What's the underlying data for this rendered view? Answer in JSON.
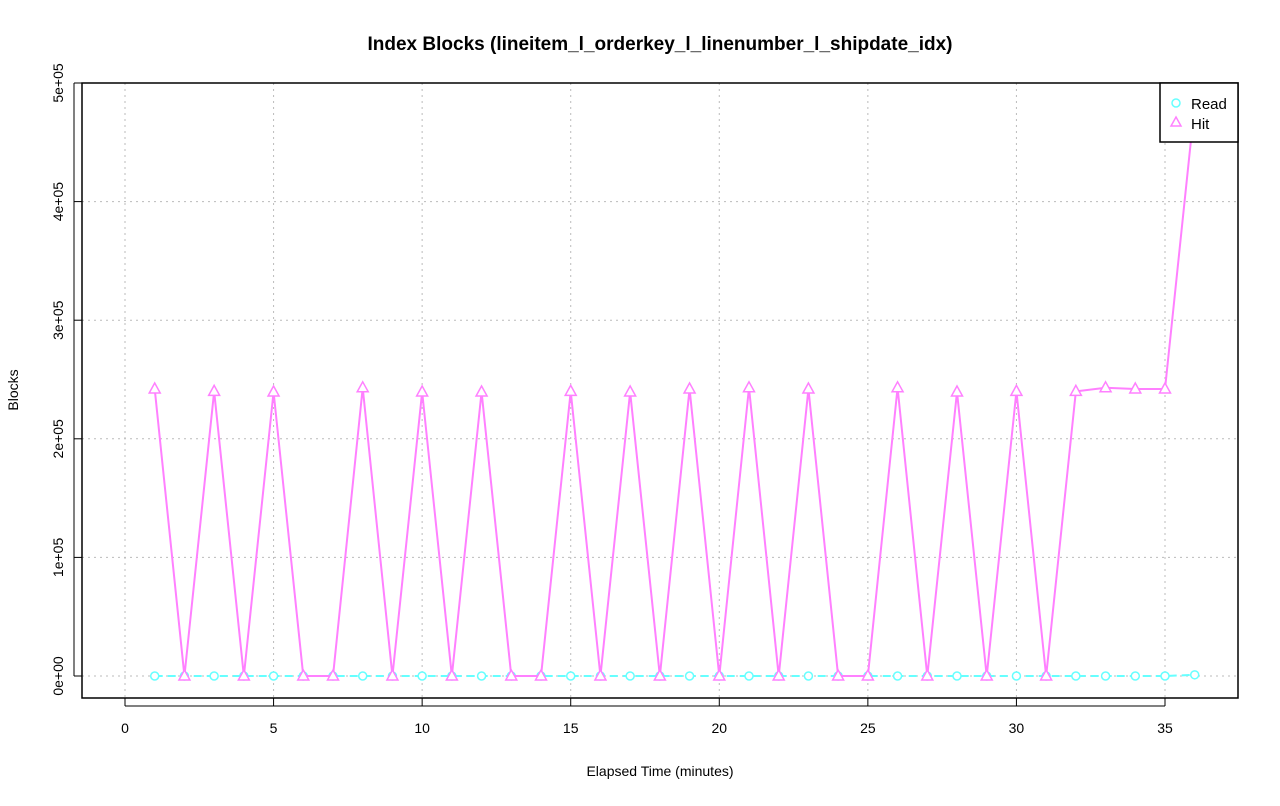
{
  "chart_data": {
    "type": "line",
    "title": "Index Blocks (lineitem_l_orderkey_l_linenumber_l_shipdate_idx)",
    "xlabel": "Elapsed Time (minutes)",
    "ylabel": "Blocks",
    "xlim": [
      0,
      37
    ],
    "ylim": [
      -18000,
      500000
    ],
    "x_ticks": [
      0,
      5,
      10,
      15,
      20,
      25,
      30,
      35
    ],
    "x_tick_labels": [
      "0",
      "5",
      "10",
      "15",
      "20",
      "25",
      "30",
      "35"
    ],
    "y_ticks": [
      0,
      100000,
      200000,
      300000,
      400000,
      500000
    ],
    "y_tick_labels": [
      "0e+00",
      "1e+05",
      "2e+05",
      "3e+05",
      "4e+05",
      "5e+05"
    ],
    "grid": true,
    "legend_position": "top-right",
    "x": [
      1,
      2,
      3,
      4,
      5,
      6,
      7,
      8,
      9,
      10,
      11,
      12,
      13,
      14,
      15,
      16,
      17,
      18,
      19,
      20,
      21,
      22,
      23,
      24,
      25,
      26,
      27,
      28,
      29,
      30,
      31,
      32,
      33,
      34,
      35,
      36
    ],
    "series": [
      {
        "name": "Read",
        "color": "#66ffff",
        "marker": "circle",
        "line": "dashed",
        "values": [
          0,
          0,
          0,
          0,
          0,
          0,
          0,
          0,
          0,
          0,
          0,
          0,
          0,
          0,
          0,
          0,
          0,
          0,
          0,
          0,
          0,
          0,
          0,
          0,
          0,
          0,
          0,
          0,
          0,
          0,
          0,
          0,
          0,
          0,
          0,
          1000
        ]
      },
      {
        "name": "Hit",
        "color": "#ff80ff",
        "marker": "triangle",
        "line": "solid",
        "values": [
          242000,
          0,
          240000,
          0,
          239500,
          0,
          0,
          243000,
          0,
          239500,
          0,
          239500,
          0,
          0,
          240000,
          0,
          239500,
          0,
          242000,
          0,
          243000,
          0,
          242000,
          0,
          0,
          243000,
          0,
          239500,
          0,
          240000,
          0,
          240000,
          243000,
          242000,
          242000,
          482000
        ]
      }
    ]
  }
}
